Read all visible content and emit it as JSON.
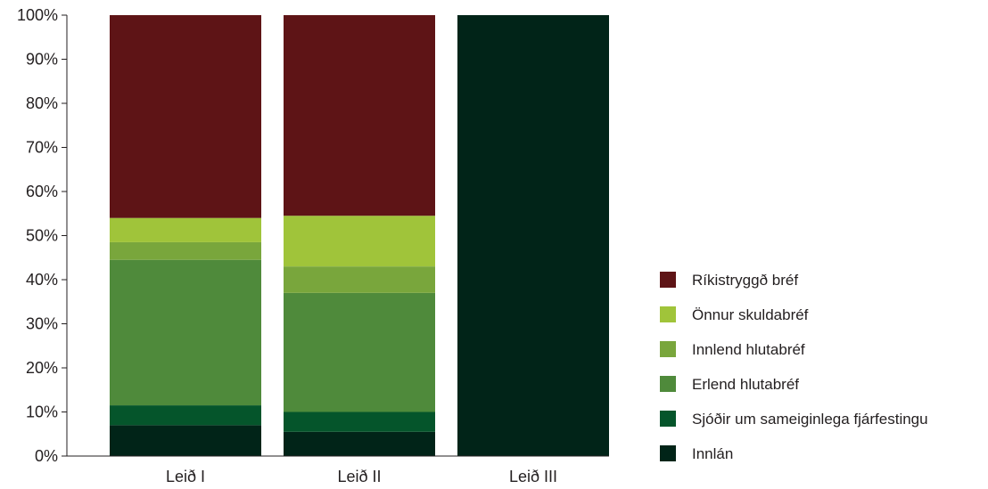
{
  "chart_data": {
    "type": "bar",
    "stacked": true,
    "title": "",
    "xlabel": "",
    "ylabel": "",
    "ylim": [
      0,
      100
    ],
    "y_ticks": [
      "0%",
      "10%",
      "20%",
      "30%",
      "40%",
      "50%",
      "60%",
      "70%",
      "80%",
      "90%",
      "100%"
    ],
    "grid": false,
    "legend_position": "right",
    "categories": [
      "Leið I",
      "Leið II",
      "Leið III"
    ],
    "series": [
      {
        "name": "Innlán",
        "color": "#012418",
        "values": [
          7,
          5.5,
          100
        ]
      },
      {
        "name": "Sjóðir um sameiginlega fjárfestingu",
        "color": "#05552b",
        "values": [
          4.5,
          4.5,
          0
        ]
      },
      {
        "name": "Erlend hlutabréf",
        "color": "#4f8a3b",
        "values": [
          33,
          27,
          0
        ]
      },
      {
        "name": "Innlend hlutabréf",
        "color": "#79a63c",
        "values": [
          4,
          6,
          0
        ]
      },
      {
        "name": "Önnur skuldabréf",
        "color": "#a0c43a",
        "values": [
          5.5,
          11.5,
          0
        ]
      },
      {
        "name": "Ríkistryggð bréf",
        "color": "#5e1416",
        "values": [
          46,
          45.5,
          0
        ]
      }
    ]
  }
}
